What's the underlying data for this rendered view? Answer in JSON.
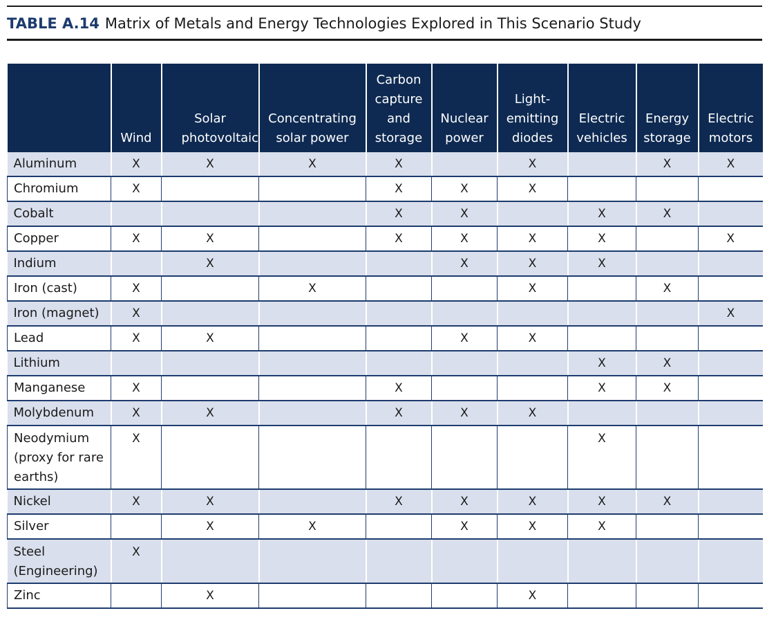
{
  "caption": {
    "label": "TABLE A.14",
    "title": "Matrix of Metals and Energy Technologies Explored in This Scenario Study"
  },
  "table": {
    "columns": [
      "",
      "Wind",
      "Solar photovoltaic",
      "Concentrating solar power",
      "Carbon capture and storage",
      "Nuclear power",
      "Light-emitting diodes",
      "Electric vehicles",
      "Energy storage",
      "Electric motors"
    ],
    "rows": [
      {
        "metal": "Aluminum",
        "cells": [
          "X",
          "X",
          "X",
          "X",
          "",
          "X",
          "",
          "X",
          "X"
        ]
      },
      {
        "metal": "Chromium",
        "cells": [
          "X",
          "",
          "",
          "X",
          "X",
          "X",
          "",
          "",
          ""
        ]
      },
      {
        "metal": "Cobalt",
        "cells": [
          "",
          "",
          "",
          "X",
          "X",
          "",
          "X",
          "X",
          ""
        ]
      },
      {
        "metal": "Copper",
        "cells": [
          "X",
          "X",
          "",
          "X",
          "X",
          "X",
          "X",
          "",
          "X"
        ]
      },
      {
        "metal": "Indium",
        "cells": [
          "",
          "X",
          "",
          "",
          "X",
          "X",
          "X",
          "",
          ""
        ]
      },
      {
        "metal": "Iron (cast)",
        "cells": [
          "X",
          "",
          "X",
          "",
          "",
          "X",
          "",
          "X",
          ""
        ]
      },
      {
        "metal": "Iron (magnet)",
        "cells": [
          "X",
          "",
          "",
          "",
          "",
          "",
          "",
          "",
          "X"
        ]
      },
      {
        "metal": "Lead",
        "cells": [
          "X",
          "X",
          "",
          "",
          "X",
          "X",
          "",
          "",
          ""
        ]
      },
      {
        "metal": "Lithium",
        "cells": [
          "",
          "",
          "",
          "",
          "",
          "",
          "X",
          "X",
          ""
        ]
      },
      {
        "metal": "Manganese",
        "cells": [
          "X",
          "",
          "",
          "X",
          "",
          "",
          "X",
          "X",
          ""
        ]
      },
      {
        "metal": "Molybdenum",
        "cells": [
          "X",
          "X",
          "",
          "X",
          "X",
          "X",
          "",
          "",
          ""
        ]
      },
      {
        "metal": "Neodymium (proxy for rare earths)",
        "cells": [
          "X",
          "",
          "",
          "",
          "",
          "",
          "X",
          "",
          ""
        ]
      },
      {
        "metal": "Nickel",
        "cells": [
          "X",
          "X",
          "",
          "X",
          "X",
          "X",
          "X",
          "X",
          ""
        ]
      },
      {
        "metal": "Silver",
        "cells": [
          "",
          "X",
          "X",
          "",
          "X",
          "X",
          "X",
          "",
          ""
        ]
      },
      {
        "metal": "Steel (Engineering)",
        "cells": [
          "X",
          "",
          "",
          "",
          "",
          "",
          "",
          "",
          ""
        ]
      },
      {
        "metal": "Zinc",
        "cells": [
          "",
          "X",
          "",
          "",
          "",
          "X",
          "",
          "",
          ""
        ]
      }
    ]
  }
}
